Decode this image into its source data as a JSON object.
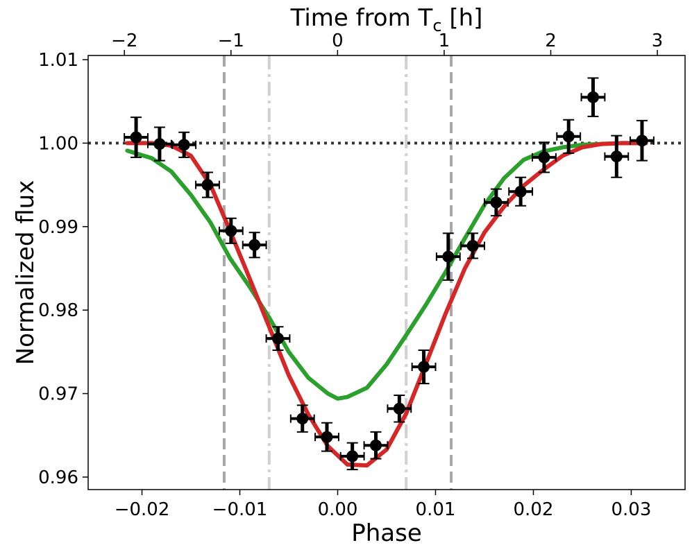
{
  "chart_data": {
    "type": "scatter",
    "xlabel": "Phase",
    "ylabel": "Normalized flux",
    "top_xlabel": "Time from T",
    "top_xlabel_sub": "c",
    "top_xlabel_unit": " [h]",
    "xlim": [
      -0.0255,
      0.0355
    ],
    "ylim": [
      0.9585,
      1.0105
    ],
    "top_xlim_hours": [
      -2.34,
      3.26
    ],
    "x_ticks": [
      -0.02,
      -0.01,
      0.0,
      0.01,
      0.02,
      0.03
    ],
    "x_tick_labels": [
      "−0.02",
      "−0.01",
      "0.00",
      "0.01",
      "0.02",
      "0.03"
    ],
    "y_ticks": [
      0.96,
      0.97,
      0.98,
      0.99,
      1.0,
      1.01
    ],
    "y_tick_labels": [
      "0.96",
      "0.97",
      "0.98",
      "0.99",
      "1.00",
      "1.01"
    ],
    "top_ticks_hours": [
      -2,
      -1,
      0,
      1,
      2,
      3
    ],
    "top_tick_labels": [
      "−2",
      "−1",
      "0",
      "1",
      "2",
      "3"
    ],
    "reference_lines": {
      "horizontal_dotted": 1.0,
      "vertical_dashed": [
        -0.0116,
        0.0116
      ],
      "vertical_dashdot": [
        -0.007,
        0.007
      ]
    },
    "data_points": {
      "x": [
        -0.0206,
        -0.0182,
        -0.0157,
        -0.0133,
        -0.0109,
        -0.0085,
        -0.0061,
        -0.0036,
        -0.0011,
        0.0015,
        0.0039,
        0.0063,
        0.0088,
        0.0113,
        0.0138,
        0.0162,
        0.0187,
        0.0211,
        0.0236,
        0.0261,
        0.0285,
        0.0311
      ],
      "y": [
        1.0007,
        0.9999,
        0.9998,
        0.995,
        0.9895,
        0.9878,
        0.9766,
        0.967,
        0.9648,
        0.9625,
        0.9638,
        0.9682,
        0.9732,
        0.9864,
        0.9877,
        0.9929,
        0.9942,
        0.9983,
        1.0008,
        1.0055,
        0.9984,
        1.0003
      ],
      "x_err": 0.0012,
      "y_err": [
        0.0024,
        0.002,
        0.0015,
        0.0015,
        0.0015,
        0.0015,
        0.0014,
        0.0016,
        0.0017,
        0.0016,
        0.0016,
        0.0016,
        0.002,
        0.0028,
        0.0015,
        0.0016,
        0.0017,
        0.0018,
        0.002,
        0.0023,
        0.0025,
        0.0024
      ]
    },
    "series": [
      {
        "name": "green model",
        "color": "#2ca02c",
        "x": [
          -0.0215,
          -0.019,
          -0.017,
          -0.015,
          -0.013,
          -0.011,
          -0.009,
          -0.007,
          -0.005,
          -0.003,
          -0.001,
          0.0,
          0.001,
          0.003,
          0.005,
          0.007,
          0.009,
          0.011,
          0.013,
          0.015,
          0.017,
          0.019,
          0.021,
          0.023,
          0.025,
          0.027,
          0.029,
          0.0315
        ],
        "y": [
          0.9991,
          0.9982,
          0.9966,
          0.9938,
          0.9905,
          0.9862,
          0.9828,
          0.9791,
          0.975,
          0.9719,
          0.97,
          0.9694,
          0.9696,
          0.9707,
          0.9735,
          0.977,
          0.9806,
          0.9845,
          0.9886,
          0.9926,
          0.9958,
          0.998,
          0.999,
          0.9995,
          0.9998,
          0.9999,
          1.0,
          1.0
        ]
      },
      {
        "name": "red model",
        "color": "#d62728",
        "x": [
          -0.0215,
          -0.019,
          -0.017,
          -0.015,
          -0.013,
          -0.011,
          -0.009,
          -0.007,
          -0.005,
          -0.003,
          -0.001,
          0.001,
          0.003,
          0.005,
          0.007,
          0.009,
          0.011,
          0.013,
          0.015,
          0.017,
          0.019,
          0.021,
          0.023,
          0.025,
          0.027,
          0.029,
          0.0315
        ],
        "y": [
          1.0,
          1.0,
          0.9997,
          0.9985,
          0.995,
          0.9895,
          0.9838,
          0.978,
          0.9722,
          0.9675,
          0.9637,
          0.9615,
          0.9614,
          0.9633,
          0.9676,
          0.9735,
          0.9795,
          0.985,
          0.9893,
          0.9924,
          0.9949,
          0.9968,
          0.9985,
          0.9995,
          0.9999,
          1.0,
          1.0
        ]
      }
    ]
  }
}
